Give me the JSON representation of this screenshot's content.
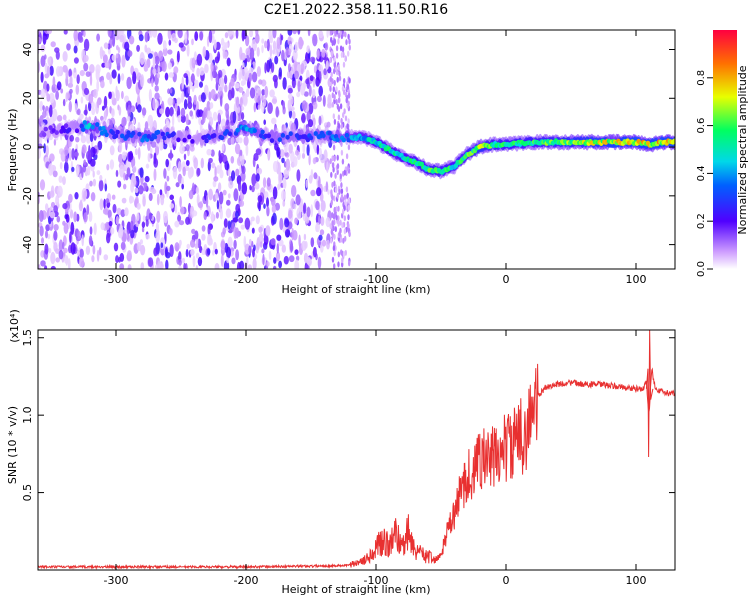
{
  "figure_title": "C2E1.2022.358.11.50.R16",
  "chart_data": [
    {
      "type": "heatmap",
      "title": "",
      "xlabel": "Height of straight line (km)",
      "ylabel": "Frequency (Hz)",
      "xlim": [
        -360,
        130
      ],
      "ylim": [
        -50,
        48
      ],
      "x_ticks": [
        -300,
        -200,
        -100,
        0,
        100
      ],
      "y_ticks": [
        -40,
        -20,
        0,
        20,
        40
      ],
      "colorbar": {
        "label": "Normalized spectral amplitude",
        "range": [
          0,
          1
        ],
        "ticks": [
          "0.0",
          "0.2",
          "0.4",
          "0.6",
          "0.8"
        ],
        "colors": [
          "#ffffff",
          "#9000ff",
          "#3c00ff",
          "#00c8ff",
          "#00ff60",
          "#f0ff00",
          "#ff7000",
          "#ff0030"
        ]
      },
      "signal_track": {
        "x": [
          -360,
          -330,
          -320,
          -300,
          -280,
          -260,
          -240,
          -220,
          -200,
          -180,
          -160,
          -140,
          -120,
          -110,
          -100,
          -90,
          -80,
          -70,
          -60,
          -50,
          -40,
          -30,
          -20,
          -10,
          0,
          20,
          40,
          60,
          80,
          100,
          110,
          120,
          130
        ],
        "frequency_hz": [
          6,
          8,
          9,
          5,
          4,
          5,
          3,
          5,
          8,
          4,
          4,
          5,
          4,
          4,
          2,
          -1,
          -4,
          -6,
          -9,
          -10,
          -8,
          -3,
          0,
          1,
          1,
          2,
          2,
          2,
          2,
          2,
          1,
          2,
          2
        ],
        "amplitude": [
          0.15,
          0.25,
          0.45,
          0.3,
          0.35,
          0.3,
          0.2,
          0.3,
          0.4,
          0.3,
          0.3,
          0.35,
          0.4,
          0.45,
          0.5,
          0.55,
          0.5,
          0.55,
          0.6,
          0.6,
          0.55,
          0.6,
          0.7,
          0.6,
          0.6,
          0.6,
          0.65,
          0.7,
          0.75,
          0.8,
          0.75,
          0.8,
          0.8
        ]
      }
    },
    {
      "type": "line",
      "title": "",
      "xlabel": "Height of straight line (km)",
      "ylabel": "SNR (10 * v/v)",
      "scale_label": "(x10⁴)",
      "xlim": [
        -360,
        130
      ],
      "ylim": [
        0,
        1.55
      ],
      "x_ticks": [
        -300,
        -200,
        -100,
        0,
        100
      ],
      "y_ticks": [
        "0.5",
        "1.0",
        "1.5"
      ],
      "y_tick_values": [
        0.5,
        1.0,
        1.5
      ],
      "series": [
        {
          "color": "#e83030",
          "x": [
            -360,
            -300,
            -250,
            -200,
            -150,
            -120,
            -110,
            -100,
            -95,
            -90,
            -85,
            -80,
            -75,
            -70,
            -65,
            -60,
            -55,
            -50,
            -45,
            -40,
            -35,
            -30,
            -25,
            -20,
            -15,
            -10,
            -5,
            0,
            5,
            10,
            15,
            20,
            25,
            30,
            40,
            50,
            60,
            70,
            80,
            90,
            100,
            105,
            108,
            110,
            112,
            115,
            120,
            125,
            130
          ],
          "values": [
            0.02,
            0.02,
            0.02,
            0.02,
            0.025,
            0.03,
            0.06,
            0.12,
            0.18,
            0.15,
            0.2,
            0.16,
            0.22,
            0.12,
            0.1,
            0.08,
            0.06,
            0.1,
            0.25,
            0.35,
            0.5,
            0.62,
            0.6,
            0.75,
            0.7,
            0.72,
            0.75,
            0.8,
            0.8,
            0.85,
            0.9,
            1.0,
            1.12,
            1.18,
            1.2,
            1.21,
            1.2,
            1.2,
            1.19,
            1.18,
            1.17,
            1.16,
            1.22,
            1.0,
            1.3,
            1.17,
            1.15,
            1.14,
            1.14
          ]
        }
      ]
    }
  ]
}
